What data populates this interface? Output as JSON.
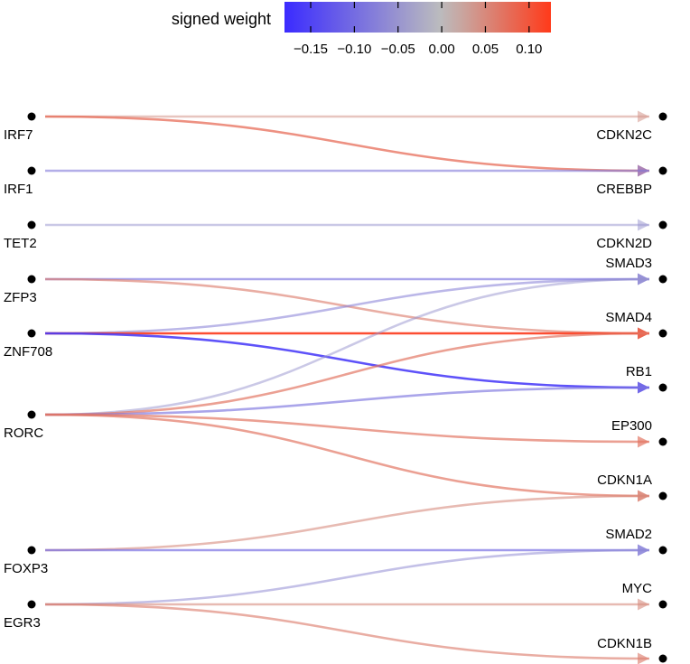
{
  "legend": {
    "title": "signed  weight",
    "ticks": [
      -0.15,
      -0.1,
      -0.05,
      0.0,
      0.05,
      0.1
    ],
    "tick_labels": [
      "−0.15",
      "−0.10",
      "−0.05",
      "0.00",
      "0.05",
      "0.10"
    ],
    "range": [
      -0.18,
      0.125
    ],
    "colors": {
      "negative": "#3b2bff",
      "neutral": "#bdbdbd",
      "positive": "#ff3a1a"
    }
  },
  "sources": [
    "IRF7",
    "IRF1",
    "TET2",
    "ZFP3",
    "ZNF708",
    "RORC",
    "FOXP3",
    "EGR3"
  ],
  "targets": [
    "CDKN2C",
    "CREBBP",
    "CDKN2D",
    "SMAD3",
    "SMAD4",
    "RB1",
    "EP300",
    "CDKN1A",
    "SMAD2",
    "MYC",
    "CDKN1B"
  ],
  "edges": [
    {
      "from": "IRF7",
      "to": "CDKN2C",
      "weight": 0.04
    },
    {
      "from": "IRF7",
      "to": "CREBBP",
      "weight": 0.08
    },
    {
      "from": "IRF1",
      "to": "CREBBP",
      "weight": -0.08
    },
    {
      "from": "TET2",
      "to": "CDKN2D",
      "weight": -0.05
    },
    {
      "from": "ZFP3",
      "to": "SMAD3",
      "weight": -0.09
    },
    {
      "from": "ZFP3",
      "to": "SMAD4",
      "weight": 0.06
    },
    {
      "from": "ZNF708",
      "to": "SMAD3",
      "weight": -0.07
    },
    {
      "from": "ZNF708",
      "to": "SMAD4",
      "weight": 0.12
    },
    {
      "from": "ZNF708",
      "to": "RB1",
      "weight": -0.16
    },
    {
      "from": "RORC",
      "to": "SMAD3",
      "weight": -0.05
    },
    {
      "from": "RORC",
      "to": "SMAD4",
      "weight": 0.07
    },
    {
      "from": "RORC",
      "to": "RB1",
      "weight": -0.09
    },
    {
      "from": "RORC",
      "to": "EP300",
      "weight": 0.07
    },
    {
      "from": "RORC",
      "to": "CDKN1A",
      "weight": 0.07
    },
    {
      "from": "FOXP3",
      "to": "CDKN1A",
      "weight": 0.05
    },
    {
      "from": "FOXP3",
      "to": "SMAD2",
      "weight": -0.1
    },
    {
      "from": "EGR3",
      "to": "SMAD2",
      "weight": -0.06
    },
    {
      "from": "EGR3",
      "to": "MYC",
      "weight": 0.05
    },
    {
      "from": "EGR3",
      "to": "CDKN1B",
      "weight": 0.06
    }
  ]
}
